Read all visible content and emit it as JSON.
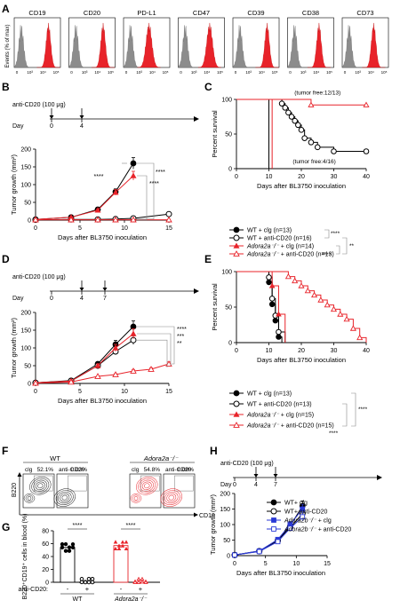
{
  "panels": {
    "A": "A",
    "B": "B",
    "C": "C",
    "D": "D",
    "E": "E",
    "F": "F",
    "G": "G",
    "H": "H"
  },
  "colors": {
    "red": "#e8232a",
    "blue": "#2b3ad6",
    "grey": "#8c8c8c",
    "black": "#000000"
  },
  "histograms": {
    "ylabel": "Events (% of max)",
    "markers": [
      "CD19",
      "CD20",
      "PD-L1",
      "CD47",
      "CD39",
      "CD38",
      "CD73"
    ],
    "ticks": [
      "0",
      "10³",
      "10⁴",
      "10⁵"
    ]
  },
  "treatment_B": {
    "label": "anti-CD20 (100 μg)",
    "day_word": "Day",
    "days": [
      "0",
      "4"
    ]
  },
  "treatment_D": {
    "label": "anti-CD20 (100 μg)",
    "day_word": "Day",
    "days": [
      "0",
      "4",
      "7"
    ]
  },
  "treatment_H": {
    "label": "anti-CD20 (100 μg)",
    "day_word": "Day",
    "days": [
      "0",
      "4",
      "7"
    ]
  },
  "chart_data": [
    {
      "panel": "B",
      "type": "line",
      "ylabel": "Tumor growth (mm²)",
      "xlabel": "Days after BL3750 inoculation",
      "xlim": [
        0,
        15
      ],
      "ylim": [
        0,
        200
      ],
      "xticks": [
        "0",
        "5",
        "10",
        "15"
      ],
      "yticks": [
        "0",
        "50",
        "100",
        "150",
        "200"
      ],
      "series": [
        {
          "name": "WT + clg",
          "x": [
            0,
            4,
            7,
            9,
            11
          ],
          "y": [
            2,
            8,
            30,
            80,
            160
          ],
          "style": "filled-circle-black"
        },
        {
          "name": "WT + anti-CD20",
          "x": [
            0,
            4,
            7,
            9,
            11,
            15
          ],
          "y": [
            1,
            2,
            2,
            3,
            5,
            17
          ],
          "style": "open-circle-black"
        },
        {
          "name": "Adora2a⁻/⁻ + clg",
          "x": [
            0,
            4,
            7,
            9,
            11
          ],
          "y": [
            2,
            8,
            28,
            78,
            125
          ],
          "style": "filled-triangle-red"
        },
        {
          "name": "Adora2a⁻/⁻ + anti-CD20",
          "x": [
            0,
            4,
            7,
            9,
            11,
            15
          ],
          "y": [
            1,
            1,
            1,
            1,
            1,
            1
          ],
          "style": "open-triangle-red"
        }
      ],
      "stars": [
        "****",
        "****",
        "****"
      ]
    },
    {
      "panel": "C",
      "type": "line",
      "ylabel": "Percent survival",
      "xlabel": "Days after BL3750 inoculation",
      "xlim": [
        0,
        40
      ],
      "ylim": [
        0,
        100
      ],
      "xticks": [
        "0",
        "10",
        "20",
        "30",
        "40"
      ],
      "yticks": [
        "0",
        "50",
        "100"
      ],
      "annotations": [
        "(tumor free:12/13)",
        "(tumor free:4/16)"
      ],
      "series": [
        {
          "name": "WT + clg (n=13)",
          "x": [
            0,
            10,
            10
          ],
          "y": [
            100,
            100,
            0
          ]
        },
        {
          "name": "WT + anti-CD20 (n=16)",
          "x": [
            0,
            14,
            15,
            16,
            17,
            18,
            19,
            20,
            21,
            23,
            25,
            30,
            40
          ],
          "y": [
            100,
            94,
            88,
            81,
            75,
            69,
            63,
            56,
            44,
            38,
            31,
            25,
            25
          ]
        },
        {
          "name": "Adora2a⁻/⁻ + clg (n=14)",
          "x": [
            0,
            10,
            11
          ],
          "y": [
            100,
            100,
            0
          ]
        },
        {
          "name": "Adora2a⁻/⁻ + anti-CD20 (n=13)",
          "x": [
            0,
            23,
            40
          ],
          "y": [
            100,
            92,
            92
          ]
        }
      ],
      "stars": [
        "****",
        "**",
        "****"
      ]
    },
    {
      "panel": "D",
      "type": "line",
      "ylabel": "Tumor growth (mm²)",
      "xlabel": "Days after BL3750 inoculation",
      "xlim": [
        0,
        15
      ],
      "ylim": [
        0,
        200
      ],
      "xticks": [
        "0",
        "5",
        "10",
        "15"
      ],
      "yticks": [
        "0",
        "50",
        "100",
        "150",
        "200"
      ],
      "series": [
        {
          "name": "WT + clg",
          "x": [
            0,
            4,
            7,
            9,
            11
          ],
          "y": [
            2,
            8,
            55,
            110,
            160
          ]
        },
        {
          "name": "WT + anti-CD20",
          "x": [
            0,
            4,
            7,
            9,
            11
          ],
          "y": [
            2,
            7,
            50,
            90,
            122
          ]
        },
        {
          "name": "Adora2a⁻/⁻ + clg",
          "x": [
            0,
            4,
            7,
            9,
            11
          ],
          "y": [
            2,
            7,
            50,
            100,
            140
          ]
        },
        {
          "name": "Adora2a⁻/⁻ + anti-CD20",
          "x": [
            0,
            4,
            7,
            9,
            11,
            13,
            15
          ],
          "y": [
            1,
            4,
            20,
            25,
            35,
            40,
            55
          ]
        }
      ],
      "stars": [
        "****",
        "***",
        "**"
      ]
    },
    {
      "panel": "E",
      "type": "line",
      "ylabel": "Percent survival",
      "xlabel": "Days after BL3750 inoculation",
      "xlim": [
        0,
        40
      ],
      "ylim": [
        0,
        100
      ],
      "xticks": [
        "0",
        "10",
        "20",
        "30",
        "40"
      ],
      "yticks": [
        "0",
        "50",
        "100"
      ],
      "series": [
        {
          "name": "WT + clg (n=13)",
          "x": [
            0,
            10,
            11,
            12,
            13,
            14
          ],
          "y": [
            100,
            85,
            54,
            31,
            8,
            0
          ]
        },
        {
          "name": "WT + anti-CD20 (n=13)",
          "x": [
            0,
            10,
            11,
            12,
            13,
            15
          ],
          "y": [
            100,
            92,
            62,
            38,
            15,
            0
          ]
        },
        {
          "name": "Adora2a⁻/⁻ + clg (n=15)",
          "x": [
            0,
            11,
            13,
            15
          ],
          "y": [
            100,
            80,
            40,
            0
          ]
        },
        {
          "name": "Adora2a⁻/⁻ + anti-CD20 (n=15)",
          "x": [
            0,
            16,
            18,
            20,
            22,
            24,
            26,
            28,
            30,
            32,
            34,
            36,
            38,
            40
          ],
          "y": [
            100,
            93,
            87,
            80,
            73,
            67,
            60,
            53,
            47,
            40,
            33,
            20,
            7,
            0
          ]
        }
      ],
      "stars": [
        "****",
        "****"
      ]
    },
    {
      "panel": "G",
      "type": "bar",
      "ylabel": "B220⁺CD19⁺ cells in blood (%)",
      "ylim": [
        0,
        80
      ],
      "yticks": [
        "0",
        "20",
        "40",
        "60",
        "80"
      ],
      "row_label": "anti-CD20:",
      "categories": [
        "-",
        "+",
        "-",
        "+"
      ],
      "groups": [
        "WT",
        "Adora2a⁻/⁻"
      ],
      "values": [
        54,
        0.03,
        57,
        0.08
      ],
      "stars": [
        "****",
        "****"
      ]
    },
    {
      "panel": "H",
      "type": "line",
      "ylabel": "Tumor growth (mm²)",
      "xlabel": "Days after BL3750 inoculation",
      "xlim": [
        0,
        15
      ],
      "ylim": [
        0,
        200
      ],
      "xticks": [
        "0",
        "5",
        "10",
        "15"
      ],
      "yticks": [
        "0",
        "50",
        "100",
        "150",
        "200"
      ],
      "series": [
        {
          "name": "WT+ clg",
          "x": [
            0,
            4,
            7,
            9,
            11
          ],
          "y": [
            2,
            15,
            50,
            95,
            160
          ]
        },
        {
          "name": "WT+ anti-CD20",
          "x": [
            0,
            4,
            7,
            9,
            11
          ],
          "y": [
            2,
            14,
            48,
            90,
            135
          ]
        },
        {
          "name": "Adora2b⁻/⁻ + clg",
          "x": [
            0,
            4,
            7,
            9,
            11
          ],
          "y": [
            2,
            15,
            52,
            100,
            150
          ]
        },
        {
          "name": "Adora2b⁻/⁻ + anti-CD20",
          "x": [
            0,
            4,
            7,
            9,
            11
          ],
          "y": [
            2,
            13,
            45,
            88,
            125
          ]
        }
      ]
    }
  ],
  "legend_BC": [
    "WT + clg (n=13)",
    "WT + anti-CD20 (n=16)",
    "Adora2a⁻/⁻ + clg (n=14)",
    "Adora2a⁻/⁻ + anti-CD20 (n=13)"
  ],
  "legend_DE": [
    "WT + clg (n=13)",
    "WT + anti-CD20 (n=13)",
    "Adora2a⁻/⁻ + clg (n=15)",
    "Adora2a⁻/⁻ + anti-CD20 (n=15)"
  ],
  "legend_H": [
    "WT+ clg",
    "WT+ anti-CD20",
    "Adora2b⁻/⁻ + clg",
    "Adora2b⁻/⁻ + anti-CD20"
  ],
  "flow_F": {
    "groups": [
      "WT",
      "Adora2a⁻/⁻"
    ],
    "subs": [
      "clg",
      "anti-CD20",
      "clg",
      "anti-CD20"
    ],
    "percents": [
      "52.1%",
      "0.03%",
      "54.8%",
      "0.08%"
    ],
    "ylabel": "B220",
    "xlabel": "CD19"
  }
}
